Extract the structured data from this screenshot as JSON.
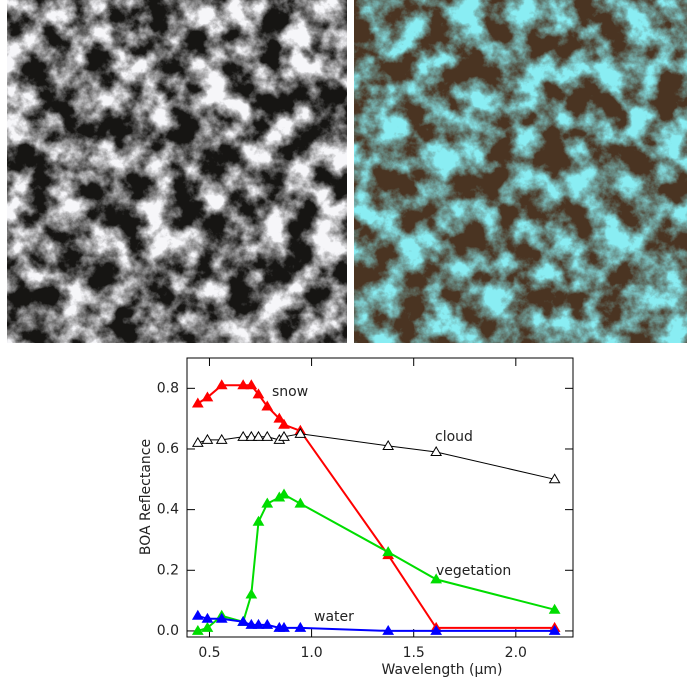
{
  "chart_data": {
    "type": "line",
    "xlabel": "Wavelength (μm)",
    "ylabel": "BOA Reflectance",
    "xlim": [
      0.39,
      2.28
    ],
    "ylim": [
      -0.02,
      0.9
    ],
    "xticks": [
      0.5,
      {
        "value": 1,
        "label": "1.0"
      },
      1.5,
      {
        "value": 2,
        "label": "2.0"
      }
    ],
    "yticks": [
      {
        "value": 0,
        "label": "0.0"
      },
      0.2,
      0.4,
      0.6,
      0.8
    ],
    "x": [
      0.443,
      0.49,
      0.56,
      0.665,
      0.705,
      0.74,
      0.783,
      0.842,
      0.865,
      0.945,
      1.375,
      1.61,
      2.19
    ],
    "series": [
      {
        "name": "snow",
        "color": "#ff0000",
        "filled": true,
        "values": [
          0.75,
          0.77,
          0.81,
          0.81,
          0.81,
          0.78,
          0.74,
          0.7,
          0.68,
          0.66,
          0.25,
          0.01,
          0.01
        ]
      },
      {
        "name": "cloud",
        "color": "#000000",
        "filled": false,
        "values": [
          0.62,
          0.63,
          0.63,
          0.64,
          0.64,
          0.64,
          0.64,
          0.63,
          0.64,
          0.65,
          0.61,
          0.59,
          0.5
        ]
      },
      {
        "name": "vegetation",
        "color": "#00dd00",
        "filled": true,
        "values": [
          0.0,
          0.01,
          0.05,
          0.03,
          0.12,
          0.36,
          0.42,
          0.44,
          0.45,
          0.42,
          0.26,
          0.17,
          0.07
        ]
      },
      {
        "name": "water",
        "color": "#0000ff",
        "filled": true,
        "values": [
          0.05,
          0.04,
          0.04,
          0.03,
          0.02,
          0.02,
          0.02,
          0.01,
          0.01,
          0.01,
          0.0,
          0.0,
          0.0
        ]
      }
    ]
  }
}
